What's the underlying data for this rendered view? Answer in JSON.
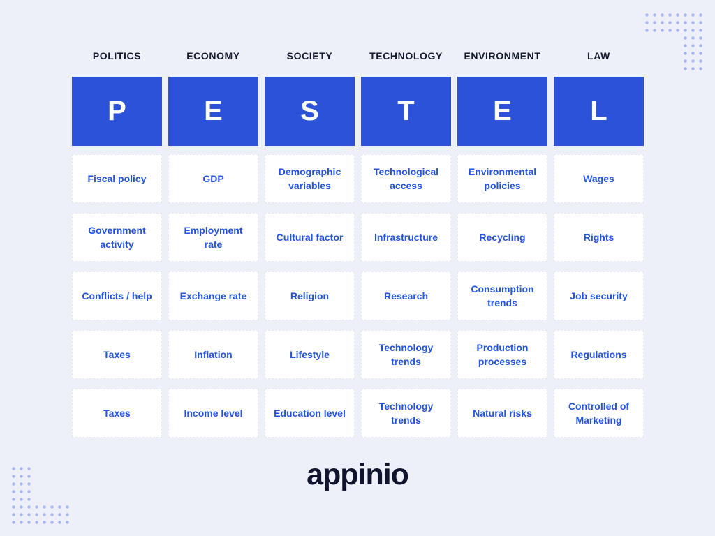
{
  "title": "PESTEL analysis diagram",
  "colors": {
    "background": "#EEF0F9",
    "letter_box_blue": "#2B52D9",
    "cell_text_blue": "#2152E3",
    "header_text": "#131A30",
    "dots": "#A7B6F1",
    "cell_background": "#FFFFFF",
    "logo_text": "#10142E"
  },
  "columns": [
    {
      "header": "POLITICS",
      "letter": "P",
      "items": [
        "Fiscal policy",
        "Government activity",
        "Conflicts / help",
        "Taxes",
        "Taxes"
      ]
    },
    {
      "header": "ECONOMY",
      "letter": "E",
      "items": [
        "GDP",
        "Employment rate",
        "Exchange rate",
        "Inflation",
        "Income level"
      ]
    },
    {
      "header": "SOCIETY",
      "letter": "S",
      "items": [
        "Demographic variables",
        "Cultural factor",
        "Religion",
        "Lifestyle",
        "Education level"
      ]
    },
    {
      "header": "TECHNOLOGY",
      "letter": "T",
      "items": [
        "Technological access",
        "Infrastructure",
        "Research",
        "Technology trends",
        "Technology trends"
      ]
    },
    {
      "header": "ENVIRONMENT",
      "letter": "E",
      "items": [
        "Environmental policies",
        "Recycling",
        "Consumption trends",
        "Production processes",
        "Natural risks"
      ]
    },
    {
      "header": "LAW",
      "letter": "L",
      "items": [
        "Wages",
        "Rights",
        "Job security",
        "Regulations",
        "Controlled of Marketing"
      ]
    }
  ],
  "logo": {
    "text": "appinio"
  }
}
